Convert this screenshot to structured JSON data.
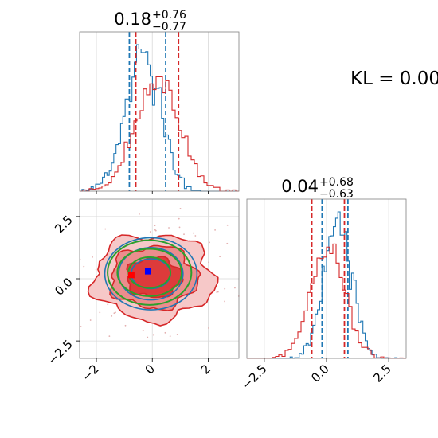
{
  "figure": {
    "kl_label": "KL = 0.00"
  },
  "chart_data": [
    {
      "type": "histogram",
      "panel": "top-left marginal",
      "title": {
        "median": "0.18",
        "plus": "+0.76",
        "minus": "−0.77"
      },
      "xlim": [
        -2.6,
        3.1
      ],
      "ylim": [
        0,
        1
      ],
      "xticks": [
        -2,
        0,
        2
      ],
      "grid": true,
      "series": [
        {
          "color": "#1f77b4",
          "mean": -0.35,
          "sd": 0.62,
          "n_bins": 70,
          "quantiles": [
            -0.82,
            0.48
          ]
        },
        {
          "color": "#d62728",
          "mean": 0.18,
          "sd": 0.78,
          "n_bins": 50,
          "quantiles": [
            -0.59,
            0.94
          ]
        }
      ]
    },
    {
      "type": "contour",
      "panel": "bottom-left 2D",
      "xlim": [
        -2.6,
        3.1
      ],
      "ylim": [
        -3.2,
        3.2
      ],
      "xticks": [
        -2,
        0,
        2
      ],
      "yticks": [
        2.5,
        0.0,
        -2.5
      ],
      "xtick_labels": [
        "−2",
        "0",
        "2"
      ],
      "ytick_labels": [
        "2.5",
        "0.0",
        "−2.5"
      ],
      "grid": true,
      "red_fill_levels": [
        {
          "color": "#f6c8c8",
          "rx": 2.15,
          "ry": 1.72
        },
        {
          "color": "#ec8d8d",
          "rx": 1.55,
          "ry": 1.25
        },
        {
          "color": "#dd3b3b",
          "rx": 0.98,
          "ry": 0.8
        }
      ],
      "red_center": [
        0.05,
        0.05
      ],
      "blue_contours": {
        "color": "#1f77b4",
        "center": [
          -0.05,
          0.2
        ],
        "radii": [
          [
            1.65,
            1.45
          ],
          [
            1.15,
            1.05
          ],
          [
            0.7,
            0.6
          ]
        ]
      },
      "green_contours": {
        "color": "#2ca02c",
        "center": [
          -0.1,
          0.25
        ],
        "radii": [
          [
            1.5,
            1.3
          ],
          [
            1.15,
            0.95
          ],
          [
            0.75,
            0.62
          ]
        ]
      },
      "markers": [
        {
          "color": "#0000ff",
          "x": -0.15,
          "y": 0.3
        },
        {
          "color": "#ff0000",
          "x": -0.75,
          "y": 0.15
        }
      ]
    },
    {
      "type": "histogram",
      "panel": "bottom-right marginal",
      "title": {
        "median": "0.04",
        "plus": "+0.68",
        "minus": "−0.63"
      },
      "xlim": [
        -3.2,
        3.2
      ],
      "ylim": [
        0,
        1
      ],
      "xticks": [
        -2.5,
        0.0,
        2.5
      ],
      "xtick_labels": [
        "−2.5",
        "0.0",
        "2.5"
      ],
      "grid": true,
      "series": [
        {
          "color": "#1f77b4",
          "mean": 0.45,
          "sd": 0.55,
          "n_bins": 70,
          "quantiles": [
            -0.18,
            0.86
          ]
        },
        {
          "color": "#d62728",
          "mean": 0.04,
          "sd": 0.68,
          "n_bins": 50,
          "quantiles": [
            -0.59,
            0.72
          ]
        }
      ]
    }
  ]
}
